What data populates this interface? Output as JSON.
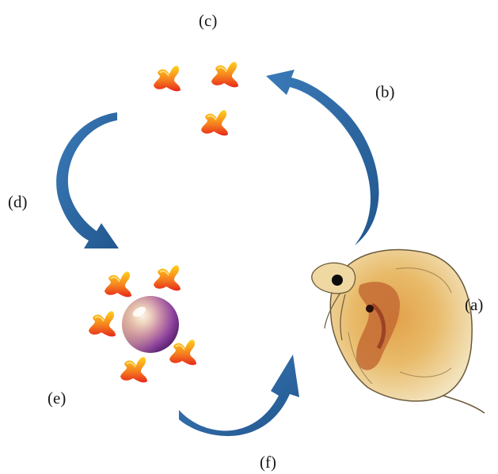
{
  "labels": {
    "a": "(a)",
    "b": "(b)",
    "c": "(c)",
    "d": "(d)",
    "e": "(e)",
    "f": "(f)"
  },
  "colors": {
    "arrow": "#2e6aa3",
    "arrow_dark": "#1f4f7d",
    "molecule_top": "#ffd21a",
    "molecule_bottom": "#e8281c",
    "sphere_light": "#f7e9c9",
    "sphere_dark": "#6a2a86",
    "organism_body": "#d9a441",
    "organism_inner": "#b5472a"
  },
  "icons": {
    "molecule": "toxin-molecule-icon",
    "particle": "nanoparticle-sphere-icon",
    "organism": "daphnia-organism-icon"
  }
}
